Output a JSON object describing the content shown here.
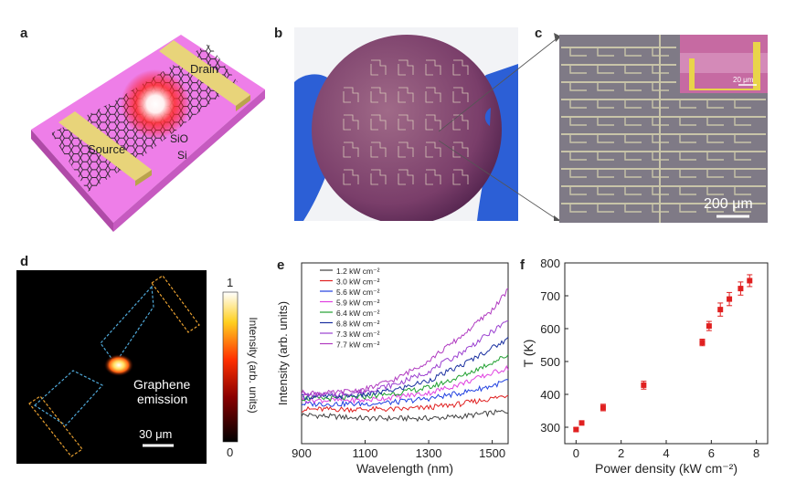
{
  "panels": {
    "a": {
      "label": "a",
      "drain": "Drain",
      "source": "Source",
      "sio": "SiO",
      "si": "Si"
    },
    "b": {
      "label": "b"
    },
    "c": {
      "label": "c",
      "scalebar": "200 μm",
      "inset_scale": "20 μm"
    },
    "d": {
      "label": "d",
      "annotation_line1": "Graphene",
      "annotation_line2": "emission",
      "scalebar": "30 μm",
      "colorbar": {
        "max": "1",
        "min": "0",
        "label": "Intensity (arb. units)"
      }
    },
    "e": {
      "label": "e"
    },
    "f": {
      "label": "f"
    }
  },
  "chart_data": [
    {
      "panel": "e",
      "type": "line",
      "xlabel": "Wavelength (nm)",
      "ylabel": "Intensity (arb. units)",
      "xlim": [
        900,
        1550
      ],
      "xticks": [
        900,
        1100,
        1300,
        1500
      ],
      "grid": false,
      "legend": "top-left",
      "series": [
        {
          "name": "1.2 kW cm⁻²",
          "color": "#404040",
          "x": [
            900,
            1000,
            1100,
            1200,
            1300,
            1400,
            1500,
            1550
          ],
          "values": [
            0.16,
            0.15,
            0.14,
            0.14,
            0.14,
            0.15,
            0.17,
            0.18
          ]
        },
        {
          "name": "3.0 kW cm⁻²",
          "color": "#e02020",
          "x": [
            900,
            1000,
            1100,
            1200,
            1300,
            1400,
            1500,
            1550
          ],
          "values": [
            0.19,
            0.19,
            0.19,
            0.19,
            0.2,
            0.22,
            0.25,
            0.27
          ]
        },
        {
          "name": "5.6 kW cm⁻²",
          "color": "#2040e0",
          "x": [
            900,
            1000,
            1100,
            1200,
            1300,
            1400,
            1500,
            1550
          ],
          "values": [
            0.22,
            0.22,
            0.22,
            0.23,
            0.25,
            0.28,
            0.32,
            0.35
          ]
        },
        {
          "name": "5.9 kW cm⁻²",
          "color": "#e040e0",
          "x": [
            900,
            1000,
            1100,
            1200,
            1300,
            1400,
            1500,
            1550
          ],
          "values": [
            0.24,
            0.24,
            0.24,
            0.26,
            0.28,
            0.33,
            0.39,
            0.42
          ]
        },
        {
          "name": "6.4 kW cm⁻²",
          "color": "#20a030",
          "x": [
            900,
            1000,
            1100,
            1200,
            1300,
            1400,
            1500,
            1550
          ],
          "values": [
            0.25,
            0.25,
            0.26,
            0.28,
            0.31,
            0.37,
            0.45,
            0.49
          ]
        },
        {
          "name": "6.8 kW cm⁻²",
          "color": "#1a30a0",
          "x": [
            900,
            1000,
            1100,
            1200,
            1300,
            1400,
            1500,
            1550
          ],
          "values": [
            0.26,
            0.26,
            0.27,
            0.3,
            0.35,
            0.43,
            0.53,
            0.58
          ]
        },
        {
          "name": "7.3 kW cm⁻²",
          "color": "#9a3fd0",
          "x": [
            900,
            1000,
            1100,
            1200,
            1300,
            1400,
            1500,
            1550
          ],
          "values": [
            0.27,
            0.27,
            0.29,
            0.33,
            0.4,
            0.5,
            0.62,
            0.68
          ]
        },
        {
          "name": "7.7 kW cm⁻²",
          "color": "#b03ac0",
          "x": [
            900,
            1000,
            1100,
            1200,
            1300,
            1400,
            1500,
            1550
          ],
          "values": [
            0.28,
            0.28,
            0.3,
            0.36,
            0.46,
            0.59,
            0.74,
            0.85
          ]
        }
      ]
    },
    {
      "panel": "f",
      "type": "scatter",
      "xlabel": "Power density (kW cm⁻²)",
      "ylabel": "T (K)",
      "xlim": [
        -0.5,
        8.5
      ],
      "ylim": [
        250,
        800
      ],
      "xticks": [
        0,
        2,
        4,
        6,
        8
      ],
      "yticks": [
        300,
        400,
        500,
        600,
        700,
        800
      ],
      "grid": false,
      "series": [
        {
          "name": "",
          "color": "#e02020",
          "x": [
            0,
            0.25,
            1.2,
            3.0,
            5.6,
            5.9,
            6.4,
            6.8,
            7.3,
            7.7
          ],
          "values": [
            293,
            313,
            360,
            428,
            558,
            608,
            658,
            690,
            722,
            746
          ],
          "errors": [
            5,
            6,
            10,
            12,
            10,
            14,
            20,
            20,
            20,
            18
          ]
        }
      ]
    }
  ]
}
